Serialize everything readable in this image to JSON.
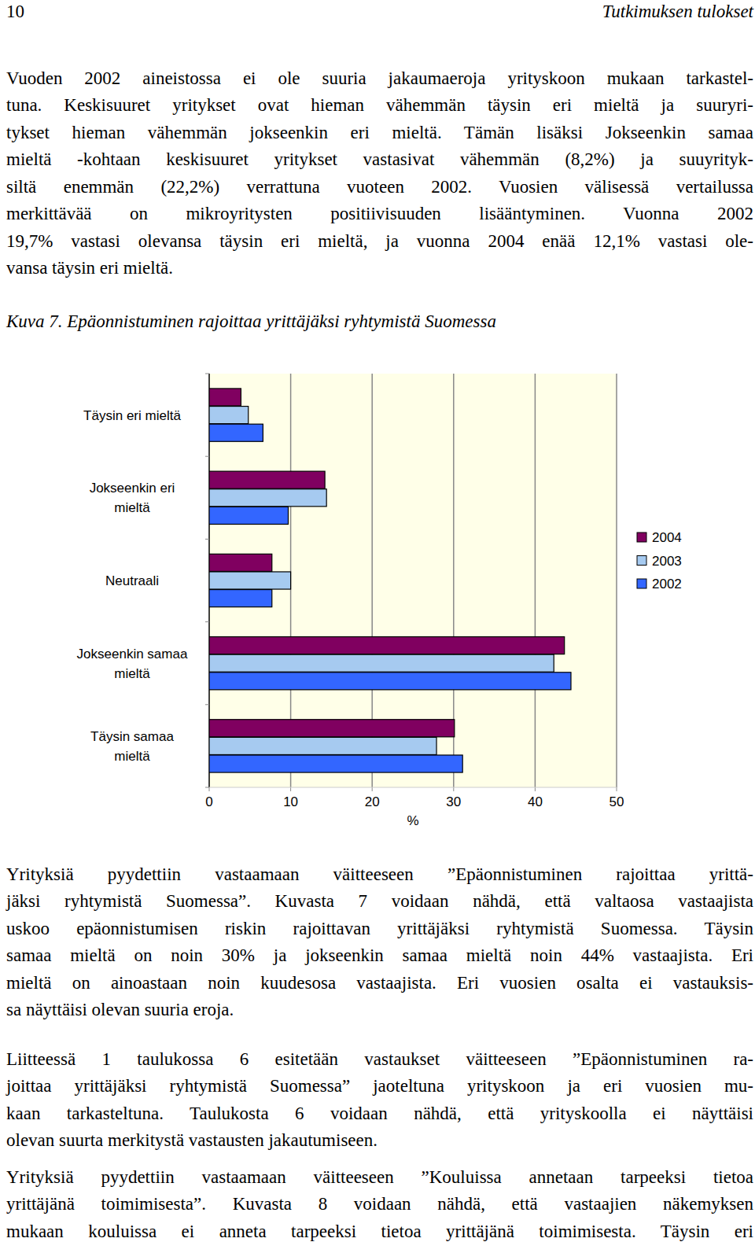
{
  "header": {
    "page_number": "10",
    "running_title": "Tutkimuksen tulokset"
  },
  "body_top": [
    [
      "Vuoden 2002 aineistossa ei ole suuria jakaumaeroja yrityskoon mukaan tarkastel-",
      "tuna. Keskisuuret yritykset ovat hieman vähemmän täysin eri mieltä ja suuryri-",
      "tykset hieman vähemmän jokseenkin eri mieltä. Tämän lisäksi Jokseenkin samaa",
      "mieltä -kohtaan keskisuuret yritykset vastasivat vähemmän (8,2%) ja suuyrityk-",
      "siltä enemmän (22,2%) verrattuna vuoteen 2002. Vuosien välisessä vertailussa",
      "merkittävää on mikroyritysten positiivisuuden lisääntyminen. Vuonna 2002",
      "19,7% vastasi olevansa täysin eri mieltä, ja vuonna 2004 enää 12,1% vastasi ole-",
      "vansa täysin eri mieltä."
    ]
  ],
  "figure_caption": "Kuva 7. Epäonnistuminen rajoittaa yrittäjäksi ryhtymistä Suomessa",
  "chart_data": {
    "type": "bar",
    "orientation": "horizontal",
    "categories": [
      "Täysin eri mieltä",
      "Jokseenkin eri mieltä",
      "Neutraali",
      "Jokseenkin samaa mieltä",
      "Täysin samaa mieltä"
    ],
    "series": [
      {
        "name": "2004",
        "color": "#800060",
        "values": [
          3.9,
          14.2,
          7.7,
          43.6,
          30.1
        ]
      },
      {
        "name": "2003",
        "color": "#a6caf0",
        "values": [
          4.8,
          14.4,
          10.0,
          42.3,
          27.9
        ]
      },
      {
        "name": "2002",
        "color": "#3366ff",
        "values": [
          6.6,
          9.7,
          7.7,
          44.4,
          31.1
        ]
      }
    ],
    "xlabel": "%",
    "xlim": [
      0,
      50
    ],
    "xticks": [
      0,
      10,
      20,
      30,
      40,
      50
    ],
    "grid": true,
    "legend": "right"
  },
  "body_bottom": [
    [
      "Yrityksiä pyydettiin vastaamaan väitteeseen ”Epäonnistuminen rajoittaa yrittä-",
      "jäksi ryhtymistä Suomessa”. Kuvasta 7 voidaan nähdä, että valtaosa vastaajista",
      "uskoo epäonnistumisen riskin rajoittavan yrittäjäksi ryhtymistä Suomessa. Täysin",
      "samaa mieltä on noin 30% ja jokseenkin samaa mieltä noin 44% vastaajista. Eri",
      "mieltä on ainoastaan noin kuudesosa vastaajista. Eri vuosien osalta ei vastauksis-",
      "sa näyttäisi olevan suuria eroja."
    ],
    [
      "Liitteessä 1 taulukossa 6 esitetään vastaukset väitteeseen ”Epäonnistuminen ra-",
      "joittaa yrittäjäksi ryhtymistä Suomessa” jaoteltuna yrityskoon ja eri vuosien mu-",
      "kaan tarkasteltuna. Taulukosta 6 voidaan nähdä, että yrityskoolla ei näyttäisi",
      "olevan suurta merkitystä vastausten jakautumiseen."
    ],
    [
      "Yrityksiä pyydettiin vastaamaan väitteeseen ”Kouluissa annetaan tarpeeksi tietoa",
      "yrittäjänä toimimisesta”. Kuvasta 8 voidaan nähdä, että vastaajien näkemyksen",
      "mukaan kouluissa ei anneta tarpeeksi tietoa yrittäjänä toimimisesta. Täysin eri"
    ]
  ]
}
